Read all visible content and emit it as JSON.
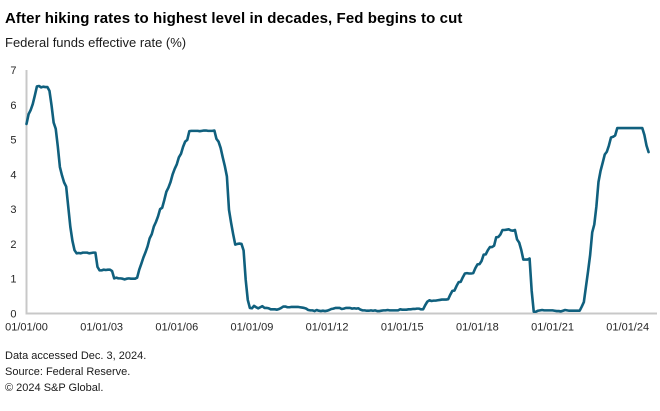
{
  "header": {
    "title": "After hiking rates to highest level in decades, Fed begins to cut",
    "subtitle": "Federal funds effective rate (%)"
  },
  "footer": {
    "lines": [
      "Data accessed Dec. 3, 2024.",
      "Source: Federal Reserve.",
      "© 2024 S&P Global."
    ]
  },
  "chart_data": {
    "type": "line",
    "title": "After hiking rates to highest level in decades, Fed begins to cut",
    "subtitle": "Federal funds effective rate (%)",
    "xlabel": "",
    "ylabel": "Federal funds effective rate (%)",
    "ylim": [
      0,
      7
    ],
    "y_ticks": [
      0,
      1,
      2,
      3,
      4,
      5,
      6,
      7
    ],
    "x_tick_labels": [
      "01/01/00",
      "01/01/03",
      "01/01/06",
      "01/01/09",
      "01/01/12",
      "01/01/15",
      "01/01/18",
      "01/01/21",
      "01/01/24"
    ],
    "grid": false,
    "legend_position": "none",
    "colors": {
      "line": "#10607E",
      "axis": "#c8c8c8",
      "tick_text": "#262626"
    },
    "series": [
      {
        "name": "Federal funds effective rate (%)",
        "start": "2000-01",
        "frequency": "monthly",
        "values": [
          5.45,
          5.73,
          5.85,
          6.02,
          6.27,
          6.53,
          6.54,
          6.5,
          6.52,
          6.51,
          6.51,
          6.4,
          5.98,
          5.49,
          5.31,
          4.8,
          4.21,
          3.97,
          3.77,
          3.65,
          3.07,
          2.49,
          2.09,
          1.82,
          1.73,
          1.74,
          1.73,
          1.75,
          1.75,
          1.75,
          1.73,
          1.74,
          1.75,
          1.75,
          1.34,
          1.24,
          1.24,
          1.26,
          1.25,
          1.26,
          1.26,
          1.22,
          1.01,
          1.03,
          1.01,
          1.01,
          1.0,
          0.98,
          1.0,
          1.01,
          1.0,
          1.0,
          1.0,
          1.03,
          1.26,
          1.43,
          1.61,
          1.76,
          1.93,
          2.16,
          2.28,
          2.5,
          2.63,
          2.79,
          3.0,
          3.04,
          3.26,
          3.5,
          3.62,
          3.78,
          4.0,
          4.16,
          4.29,
          4.49,
          4.59,
          4.79,
          4.94,
          4.99,
          5.24,
          5.25,
          5.25,
          5.25,
          5.25,
          5.24,
          5.25,
          5.26,
          5.26,
          5.25,
          5.25,
          5.25,
          5.26,
          5.02,
          4.94,
          4.76,
          4.49,
          4.24,
          3.94,
          2.98,
          2.61,
          2.28,
          1.98,
          2.0,
          2.01,
          2.0,
          1.81,
          0.97,
          0.39,
          0.16,
          0.15,
          0.22,
          0.18,
          0.15,
          0.18,
          0.21,
          0.16,
          0.16,
          0.15,
          0.12,
          0.12,
          0.12,
          0.11,
          0.13,
          0.16,
          0.2,
          0.2,
          0.18,
          0.18,
          0.19,
          0.19,
          0.19,
          0.19,
          0.18,
          0.17,
          0.16,
          0.14,
          0.1,
          0.09,
          0.09,
          0.07,
          0.1,
          0.08,
          0.07,
          0.08,
          0.07,
          0.08,
          0.1,
          0.13,
          0.14,
          0.16,
          0.16,
          0.16,
          0.13,
          0.14,
          0.16,
          0.16,
          0.16,
          0.14,
          0.15,
          0.14,
          0.15,
          0.11,
          0.09,
          0.09,
          0.08,
          0.08,
          0.09,
          0.08,
          0.09,
          0.07,
          0.07,
          0.08,
          0.09,
          0.09,
          0.1,
          0.09,
          0.09,
          0.09,
          0.09,
          0.09,
          0.12,
          0.11,
          0.11,
          0.11,
          0.12,
          0.12,
          0.13,
          0.13,
          0.14,
          0.14,
          0.12,
          0.12,
          0.24,
          0.34,
          0.38,
          0.36,
          0.37,
          0.37,
          0.38,
          0.39,
          0.4,
          0.4,
          0.4,
          0.41,
          0.54,
          0.65,
          0.66,
          0.79,
          0.9,
          0.91,
          1.04,
          1.15,
          1.16,
          1.15,
          1.15,
          1.16,
          1.3,
          1.41,
          1.42,
          1.51,
          1.69,
          1.7,
          1.82,
          1.91,
          1.91,
          1.95,
          2.19,
          2.2,
          2.27,
          2.4,
          2.4,
          2.41,
          2.42,
          2.39,
          2.38,
          2.4,
          2.13,
          2.04,
          1.83,
          1.55,
          1.55,
          1.55,
          1.58,
          0.65,
          0.05,
          0.05,
          0.08,
          0.09,
          0.1,
          0.09,
          0.09,
          0.09,
          0.09,
          0.09,
          0.08,
          0.07,
          0.07,
          0.06,
          0.08,
          0.1,
          0.09,
          0.08,
          0.08,
          0.08,
          0.08,
          0.08,
          0.08,
          0.2,
          0.33,
          0.77,
          1.21,
          1.68,
          2.33,
          2.56,
          3.08,
          3.78,
          4.1,
          4.33,
          4.57,
          4.65,
          4.83,
          5.06,
          5.08,
          5.12,
          5.33,
          5.33,
          5.33,
          5.33,
          5.33,
          5.33,
          5.33,
          5.33,
          5.33,
          5.33,
          5.33,
          5.33,
          5.33,
          5.13,
          4.83,
          4.64
        ]
      }
    ]
  }
}
